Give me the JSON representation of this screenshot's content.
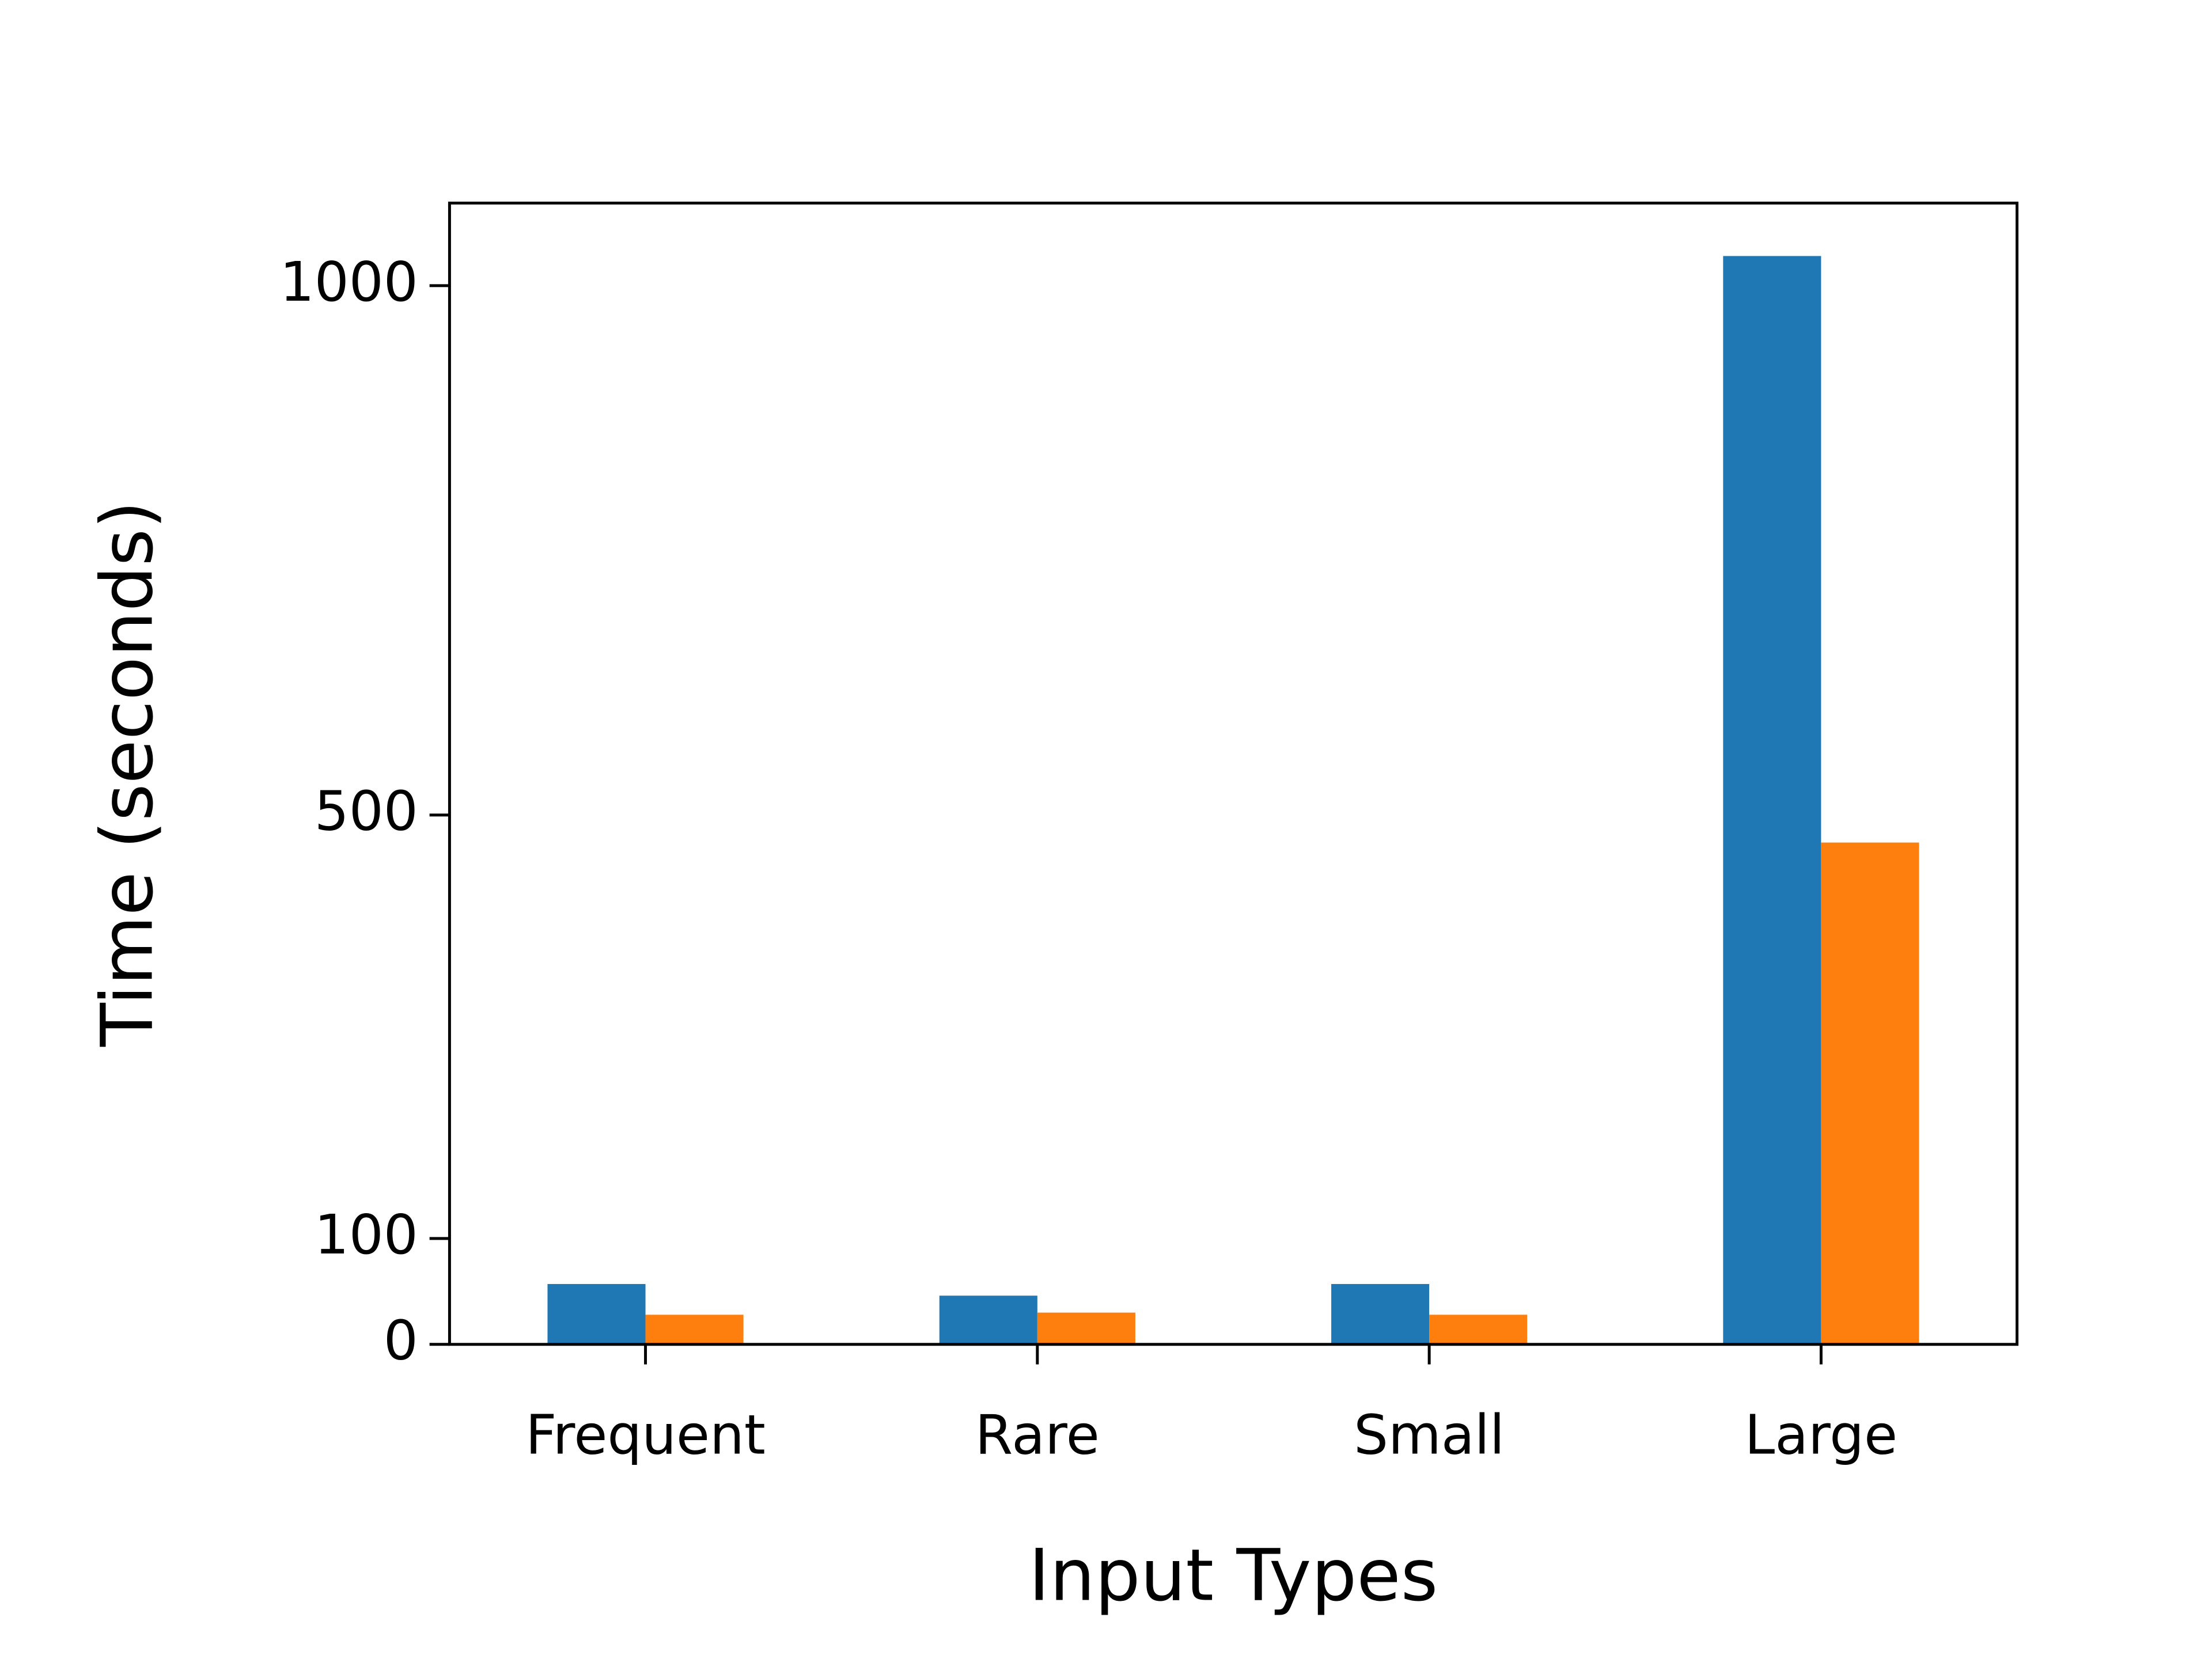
{
  "chart_data": {
    "type": "bar",
    "x_label": "Input Types",
    "y_label": "Time (seconds)",
    "categories": [
      "Frequent",
      "Rare",
      "Small",
      "Large"
    ],
    "series": [
      {
        "color": "#1f77b4",
        "values": [
          57,
          46,
          57,
          1028
        ]
      },
      {
        "color": "#ff7f0e",
        "values": [
          28,
          30,
          28,
          474
        ]
      }
    ],
    "ylim": [
      0,
      1078
    ],
    "yticks": [
      0,
      100,
      500,
      1000
    ]
  }
}
